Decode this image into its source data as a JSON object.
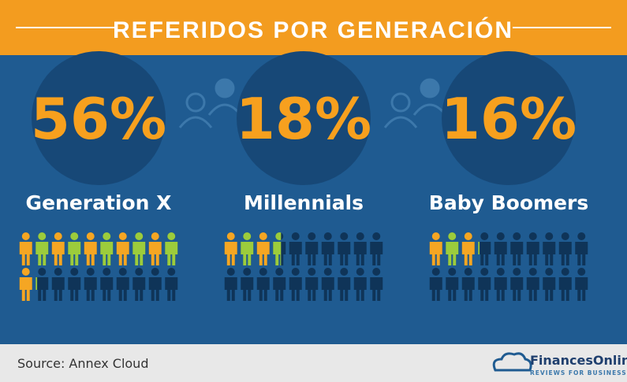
{
  "chart_data": {
    "type": "pictograph",
    "title": "REFERIDOS POR GENERACIÓN",
    "categories": [
      "Generation X",
      "Millennials",
      "Baby Boomers"
    ],
    "values": [
      56,
      18,
      16
    ],
    "value_labels": [
      "56%",
      "18%",
      "16%"
    ],
    "colors": [
      "#f5a623",
      "#9ccc3c"
    ],
    "source": "Source: Annex Cloud",
    "brand": {
      "name": "FinancesOnline",
      "tagline": "REVIEWS FOR BUSINESS"
    }
  }
}
